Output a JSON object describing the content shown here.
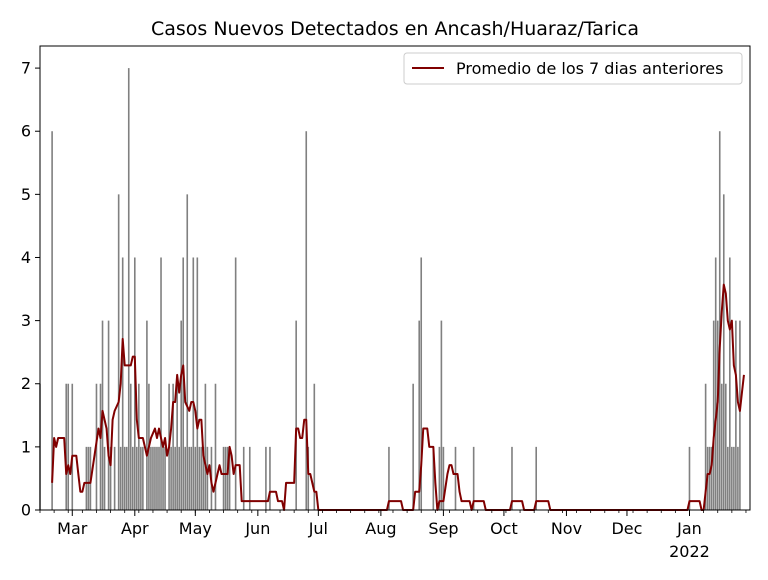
{
  "chart_data": {
    "type": "bar",
    "title": "Casos Nuevos Detectados en Ancash/Huaraz/Tarica",
    "xlabel": "",
    "ylabel": "",
    "x_start": "2021-02-13",
    "x_end": "2022-01-31",
    "ylim": [
      0,
      7.35
    ],
    "y_ticks": [
      0,
      1,
      2,
      3,
      4,
      5,
      6,
      7
    ],
    "x_ticks": [
      {
        "date": "2021-03-01",
        "label": "Mar"
      },
      {
        "date": "2021-04-01",
        "label": "Apr"
      },
      {
        "date": "2021-05-01",
        "label": "May"
      },
      {
        "date": "2021-06-01",
        "label": "Jun"
      },
      {
        "date": "2021-07-01",
        "label": "Jul"
      },
      {
        "date": "2021-08-01",
        "label": "Aug"
      },
      {
        "date": "2021-09-01",
        "label": "Sep"
      },
      {
        "date": "2021-10-01",
        "label": "Oct"
      },
      {
        "date": "2021-11-01",
        "label": "Nov"
      },
      {
        "date": "2021-12-01",
        "label": "Dec"
      },
      {
        "date": "2022-01-01",
        "label": "Jan"
      }
    ],
    "x_year_label": "2022",
    "grid": false,
    "legend_position": "top-right",
    "colors": {
      "bars": "#808080",
      "line": "#800000",
      "axes": "#000000"
    },
    "series": [
      {
        "kind": "bar",
        "points": [
          [
            "2021-02-13",
            2
          ],
          [
            "2021-02-19",
            6
          ],
          [
            "2021-02-26",
            2
          ],
          [
            "2021-02-27",
            2
          ],
          [
            "2021-03-01",
            2
          ],
          [
            "2021-03-08",
            1
          ],
          [
            "2021-03-09",
            1
          ],
          [
            "2021-03-10",
            1
          ],
          [
            "2021-03-13",
            2
          ],
          [
            "2021-03-15",
            2
          ],
          [
            "2021-03-16",
            3
          ],
          [
            "2021-03-17",
            1
          ],
          [
            "2021-03-19",
            3
          ],
          [
            "2021-03-20",
            1
          ],
          [
            "2021-03-22",
            1
          ],
          [
            "2021-03-24",
            5
          ],
          [
            "2021-03-25",
            1
          ],
          [
            "2021-03-26",
            4
          ],
          [
            "2021-03-27",
            1
          ],
          [
            "2021-03-28",
            1
          ],
          [
            "2021-03-29",
            7
          ],
          [
            "2021-03-30",
            2
          ],
          [
            "2021-03-31",
            1
          ],
          [
            "2021-04-01",
            4
          ],
          [
            "2021-04-02",
            1
          ],
          [
            "2021-04-03",
            2
          ],
          [
            "2021-04-04",
            1
          ],
          [
            "2021-04-05",
            1
          ],
          [
            "2021-04-07",
            3
          ],
          [
            "2021-04-08",
            2
          ],
          [
            "2021-04-09",
            1
          ],
          [
            "2021-04-10",
            1
          ],
          [
            "2021-04-11",
            1
          ],
          [
            "2021-04-12",
            1
          ],
          [
            "2021-04-13",
            1
          ],
          [
            "2021-04-14",
            4
          ],
          [
            "2021-04-15",
            1
          ],
          [
            "2021-04-16",
            1
          ],
          [
            "2021-04-18",
            2
          ],
          [
            "2021-04-19",
            1
          ],
          [
            "2021-04-20",
            2
          ],
          [
            "2021-04-21",
            1
          ],
          [
            "2021-04-22",
            2
          ],
          [
            "2021-04-23",
            1
          ],
          [
            "2021-04-24",
            3
          ],
          [
            "2021-04-25",
            4
          ],
          [
            "2021-04-26",
            1
          ],
          [
            "2021-04-27",
            5
          ],
          [
            "2021-04-28",
            1
          ],
          [
            "2021-04-29",
            1
          ],
          [
            "2021-04-30",
            4
          ],
          [
            "2021-05-01",
            1
          ],
          [
            "2021-05-02",
            4
          ],
          [
            "2021-05-03",
            1
          ],
          [
            "2021-05-04",
            1
          ],
          [
            "2021-05-05",
            1
          ],
          [
            "2021-05-06",
            2
          ],
          [
            "2021-05-07",
            1
          ],
          [
            "2021-05-09",
            1
          ],
          [
            "2021-05-11",
            2
          ],
          [
            "2021-05-15",
            1
          ],
          [
            "2021-05-16",
            1
          ],
          [
            "2021-05-17",
            1
          ],
          [
            "2021-05-18",
            1
          ],
          [
            "2021-05-21",
            4
          ],
          [
            "2021-05-25",
            1
          ],
          [
            "2021-05-28",
            1
          ],
          [
            "2021-06-05",
            1
          ],
          [
            "2021-06-07",
            1
          ],
          [
            "2021-06-20",
            3
          ],
          [
            "2021-06-25",
            6
          ],
          [
            "2021-06-26",
            1
          ],
          [
            "2021-06-29",
            2
          ],
          [
            "2021-08-05",
            1
          ],
          [
            "2021-08-17",
            2
          ],
          [
            "2021-08-20",
            3
          ],
          [
            "2021-08-21",
            4
          ],
          [
            "2021-08-27",
            1
          ],
          [
            "2021-08-30",
            1
          ],
          [
            "2021-08-31",
            3
          ],
          [
            "2021-09-01",
            1
          ],
          [
            "2021-09-07",
            1
          ],
          [
            "2021-09-16",
            1
          ],
          [
            "2021-10-05",
            1
          ],
          [
            "2021-10-17",
            1
          ],
          [
            "2022-01-01",
            1
          ],
          [
            "2022-01-09",
            2
          ],
          [
            "2022-01-10",
            1
          ],
          [
            "2022-01-11",
            1
          ],
          [
            "2022-01-12",
            1
          ],
          [
            "2022-01-13",
            3
          ],
          [
            "2022-01-14",
            4
          ],
          [
            "2022-01-15",
            3
          ],
          [
            "2022-01-16",
            6
          ],
          [
            "2022-01-17",
            2
          ],
          [
            "2022-01-18",
            5
          ],
          [
            "2022-01-19",
            2
          ],
          [
            "2022-01-20",
            1
          ],
          [
            "2022-01-21",
            4
          ],
          [
            "2022-01-22",
            1
          ],
          [
            "2022-01-23",
            1
          ],
          [
            "2022-01-24",
            3
          ],
          [
            "2022-01-25",
            1
          ],
          [
            "2022-01-26",
            3
          ]
        ]
      },
      {
        "kind": "line",
        "name": "Promedio de los 7 dias anteriores",
        "points": [
          [
            "2021-02-19",
            0.43
          ],
          [
            "2021-02-20",
            1.14
          ],
          [
            "2021-02-21",
            1.0
          ],
          [
            "2021-02-22",
            1.14
          ],
          [
            "2021-02-25",
            1.14
          ],
          [
            "2021-02-26",
            0.57
          ],
          [
            "2021-02-27",
            0.71
          ],
          [
            "2021-02-28",
            0.57
          ],
          [
            "2021-03-01",
            0.86
          ],
          [
            "2021-03-03",
            0.86
          ],
          [
            "2021-03-04",
            0.57
          ],
          [
            "2021-03-05",
            0.29
          ],
          [
            "2021-03-06",
            0.29
          ],
          [
            "2021-03-07",
            0.43
          ],
          [
            "2021-03-10",
            0.43
          ],
          [
            "2021-03-12",
            0.86
          ],
          [
            "2021-03-14",
            1.29
          ],
          [
            "2021-03-15",
            1.14
          ],
          [
            "2021-03-16",
            1.57
          ],
          [
            "2021-03-18",
            1.29
          ],
          [
            "2021-03-19",
            0.86
          ],
          [
            "2021-03-20",
            0.71
          ],
          [
            "2021-03-21",
            1.43
          ],
          [
            "2021-03-22",
            1.57
          ],
          [
            "2021-03-24",
            1.71
          ],
          [
            "2021-03-25",
            2.0
          ],
          [
            "2021-03-26",
            2.71
          ],
          [
            "2021-03-27",
            2.29
          ],
          [
            "2021-03-30",
            2.29
          ],
          [
            "2021-03-31",
            2.43
          ],
          [
            "2021-04-01",
            2.43
          ],
          [
            "2021-04-02",
            1.43
          ],
          [
            "2021-04-03",
            1.14
          ],
          [
            "2021-04-05",
            1.14
          ],
          [
            "2021-04-07",
            0.86
          ],
          [
            "2021-04-08",
            1.0
          ],
          [
            "2021-04-09",
            1.14
          ],
          [
            "2021-04-11",
            1.29
          ],
          [
            "2021-04-12",
            1.14
          ],
          [
            "2021-04-13",
            1.29
          ],
          [
            "2021-04-14",
            1.14
          ],
          [
            "2021-04-15",
            1.0
          ],
          [
            "2021-04-16",
            1.14
          ],
          [
            "2021-04-17",
            0.86
          ],
          [
            "2021-04-18",
            1.0
          ],
          [
            "2021-04-19",
            1.29
          ],
          [
            "2021-04-20",
            1.71
          ],
          [
            "2021-04-21",
            1.71
          ],
          [
            "2021-04-22",
            2.14
          ],
          [
            "2021-04-23",
            1.86
          ],
          [
            "2021-04-24",
            2.14
          ],
          [
            "2021-04-25",
            2.29
          ],
          [
            "2021-04-26",
            1.71
          ],
          [
            "2021-04-28",
            1.57
          ],
          [
            "2021-04-29",
            1.71
          ],
          [
            "2021-04-30",
            1.71
          ],
          [
            "2021-05-01",
            1.57
          ],
          [
            "2021-05-02",
            1.29
          ],
          [
            "2021-05-03",
            1.43
          ],
          [
            "2021-05-04",
            1.43
          ],
          [
            "2021-05-05",
            0.86
          ],
          [
            "2021-05-07",
            0.57
          ],
          [
            "2021-05-08",
            0.71
          ],
          [
            "2021-05-09",
            0.43
          ],
          [
            "2021-05-10",
            0.29
          ],
          [
            "2021-05-11",
            0.43
          ],
          [
            "2021-05-12",
            0.57
          ],
          [
            "2021-05-13",
            0.71
          ],
          [
            "2021-05-14",
            0.57
          ],
          [
            "2021-05-17",
            0.57
          ],
          [
            "2021-05-18",
            1.0
          ],
          [
            "2021-05-19",
            0.86
          ],
          [
            "2021-05-20",
            0.57
          ],
          [
            "2021-05-21",
            0.71
          ],
          [
            "2021-05-23",
            0.71
          ],
          [
            "2021-05-24",
            0.14
          ],
          [
            "2021-06-06",
            0.14
          ],
          [
            "2021-06-07",
            0.29
          ],
          [
            "2021-06-10",
            0.29
          ],
          [
            "2021-06-11",
            0.14
          ],
          [
            "2021-06-13",
            0.14
          ],
          [
            "2021-06-14",
            0.0
          ],
          [
            "2021-06-15",
            0.43
          ],
          [
            "2021-06-19",
            0.43
          ],
          [
            "2021-06-20",
            1.29
          ],
          [
            "2021-06-21",
            1.29
          ],
          [
            "2021-06-22",
            1.14
          ],
          [
            "2021-06-23",
            1.14
          ],
          [
            "2021-06-24",
            1.43
          ],
          [
            "2021-06-25",
            1.43
          ],
          [
            "2021-06-26",
            0.57
          ],
          [
            "2021-06-27",
            0.57
          ],
          [
            "2021-06-28",
            0.43
          ],
          [
            "2021-06-29",
            0.29
          ],
          [
            "2021-06-30",
            0.29
          ],
          [
            "2021-07-01",
            0.0
          ],
          [
            "2021-08-04",
            0.0
          ],
          [
            "2021-08-05",
            0.14
          ],
          [
            "2021-08-11",
            0.14
          ],
          [
            "2021-08-12",
            0.0
          ],
          [
            "2021-08-17",
            0.0
          ],
          [
            "2021-08-18",
            0.29
          ],
          [
            "2021-08-20",
            0.29
          ],
          [
            "2021-08-21",
            0.71
          ],
          [
            "2021-08-22",
            1.29
          ],
          [
            "2021-08-24",
            1.29
          ],
          [
            "2021-08-25",
            1.0
          ],
          [
            "2021-08-27",
            1.0
          ],
          [
            "2021-08-28",
            0.43
          ],
          [
            "2021-08-29",
            0.0
          ],
          [
            "2021-08-30",
            0.14
          ],
          [
            "2021-09-01",
            0.14
          ],
          [
            "2021-09-03",
            0.57
          ],
          [
            "2021-09-04",
            0.71
          ],
          [
            "2021-09-05",
            0.71
          ],
          [
            "2021-09-06",
            0.57
          ],
          [
            "2021-09-08",
            0.57
          ],
          [
            "2021-09-09",
            0.29
          ],
          [
            "2021-09-10",
            0.14
          ],
          [
            "2021-09-14",
            0.14
          ],
          [
            "2021-09-15",
            0.0
          ],
          [
            "2021-09-16",
            0.14
          ],
          [
            "2021-09-21",
            0.14
          ],
          [
            "2021-09-22",
            0.0
          ],
          [
            "2021-10-04",
            0.0
          ],
          [
            "2021-10-05",
            0.14
          ],
          [
            "2021-10-10",
            0.14
          ],
          [
            "2021-10-11",
            0.0
          ],
          [
            "2021-10-16",
            0.0
          ],
          [
            "2021-10-17",
            0.14
          ],
          [
            "2021-10-23",
            0.14
          ],
          [
            "2021-10-24",
            0.0
          ],
          [
            "2021-12-31",
            0.0
          ],
          [
            "2022-01-01",
            0.14
          ],
          [
            "2022-01-06",
            0.14
          ],
          [
            "2022-01-07",
            0.0
          ],
          [
            "2022-01-08",
            0.0
          ],
          [
            "2022-01-09",
            0.29
          ],
          [
            "2022-01-10",
            0.57
          ],
          [
            "2022-01-11",
            0.57
          ],
          [
            "2022-01-12",
            0.71
          ],
          [
            "2022-01-13",
            1.14
          ],
          [
            "2022-01-14",
            1.43
          ],
          [
            "2022-01-15",
            1.71
          ],
          [
            "2022-01-16",
            2.57
          ],
          [
            "2022-01-17",
            3.14
          ],
          [
            "2022-01-18",
            3.57
          ],
          [
            "2022-01-19",
            3.43
          ],
          [
            "2022-01-20",
            3.0
          ],
          [
            "2022-01-21",
            2.86
          ],
          [
            "2022-01-22",
            3.0
          ],
          [
            "2022-01-23",
            2.29
          ],
          [
            "2022-01-24",
            2.14
          ],
          [
            "2022-01-25",
            1.71
          ],
          [
            "2022-01-26",
            1.57
          ],
          [
            "2022-01-27",
            1.86
          ],
          [
            "2022-01-28",
            2.14
          ]
        ]
      }
    ]
  }
}
